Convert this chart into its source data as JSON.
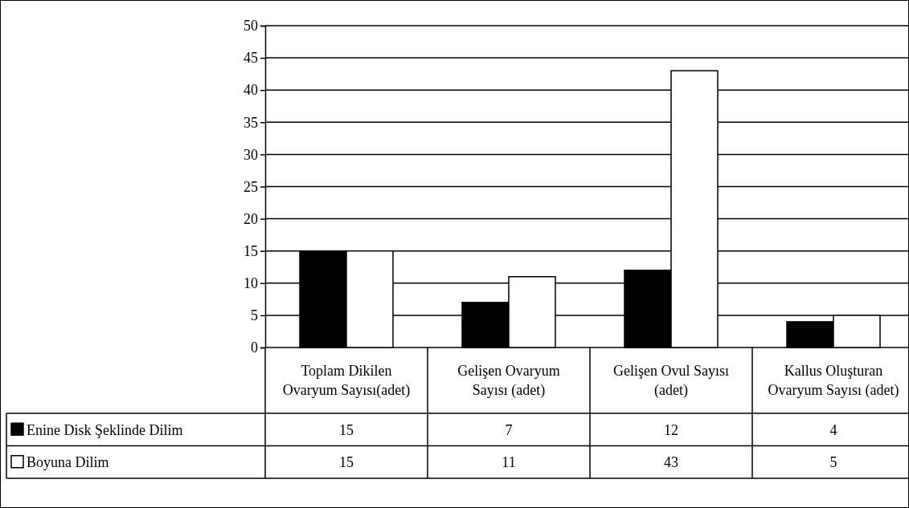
{
  "chart_data": {
    "type": "bar",
    "categories": [
      "Toplam Dikilen Ovaryum Sayısı(adet)",
      "Gelişen Ovaryum Sayısı (adet)",
      "Gelişen Ovul Sayısı (adet)",
      "Kallus Oluşturan Ovaryum Sayısı (adet)"
    ],
    "series": [
      {
        "name": "Enine Disk Şeklinde Dilim",
        "color": "#000000",
        "values": [
          15,
          7,
          12,
          4
        ]
      },
      {
        "name": "Boyuna Dilim",
        "color": "#ffffff",
        "values": [
          15,
          11,
          43,
          5
        ]
      }
    ],
    "ylim": [
      0,
      50
    ],
    "yticks": [
      0,
      5,
      10,
      15,
      20,
      25,
      30,
      35,
      40,
      45,
      50
    ],
    "grid": "y",
    "legend": "bottom left",
    "data_labels": true
  }
}
